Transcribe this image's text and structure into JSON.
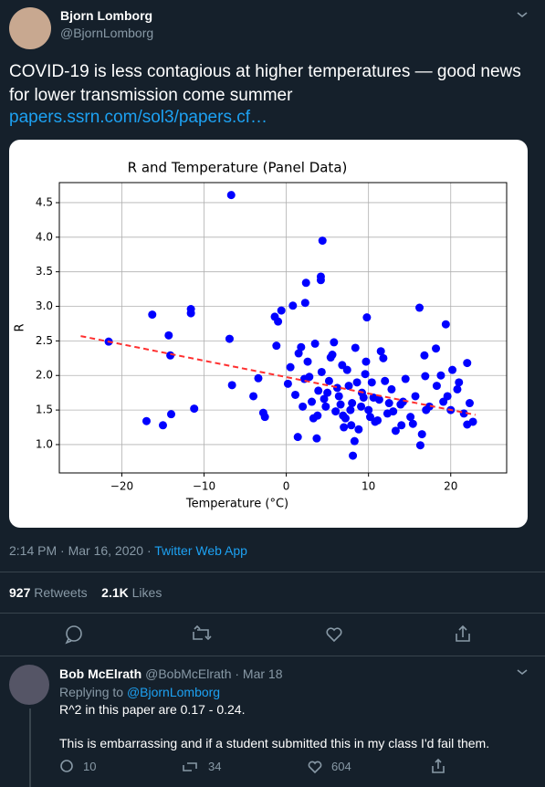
{
  "tweet": {
    "author": {
      "name": "Bjorn Lomborg",
      "handle": "@BjornLomborg"
    },
    "text": "COVID-19 is less contagious at higher temperatures — good news for lower transmission come summer",
    "link": "papers.ssrn.com/sol3/papers.cf…",
    "timestamp": "2:14 PM · Mar 16, 2020 · ",
    "source": "Twitter Web App",
    "retweets": {
      "count": "927",
      "label": "Retweets"
    },
    "likes": {
      "count": "2.1K",
      "label": "Likes"
    }
  },
  "reply": {
    "author": {
      "name": "Bob McElrath",
      "handle_date": "@BobMcElrath · Mar 18"
    },
    "replying_to": "Replying to",
    "replying_handle": "@BjornLomborg",
    "lines": [
      "R^2 in this paper are 0.17 - 0.24.",
      "This is embarrassing and if a student submitted this in my class I'd fail them."
    ],
    "replies": "10",
    "retweets": "34",
    "likes": "604"
  },
  "chart_data": {
    "type": "scatter",
    "title": "R and Temperature (Panel Data)",
    "x_label": "Temperature (°C)",
    "y_label": "R",
    "color": "#0000ff",
    "grid": true,
    "xlim": [
      -27.6,
      26.8
    ],
    "ylim": [
      0.59,
      4.79
    ],
    "xticks": [
      {
        "value": -20,
        "label": "−20"
      },
      {
        "value": -10,
        "label": "−10"
      },
      0,
      10,
      20
    ],
    "yticks": [
      {
        "value": 1,
        "label": "1.0"
      },
      1.5,
      {
        "value": 2,
        "label": "2.0"
      },
      2.5,
      {
        "value": 3,
        "label": "3.0"
      },
      3.5,
      {
        "value": 4,
        "label": "4.0"
      },
      4.5
    ],
    "x": [
      -6.7,
      -21.6,
      -16.3,
      -17,
      -15,
      -14.3,
      -14.1,
      -14,
      -11.6,
      -11.6,
      -11.2,
      -6.9,
      -6.6,
      -4,
      -3.4,
      -2.8,
      -2.6,
      -1.4,
      -1,
      -0.6,
      -1.2,
      0.8,
      2.3,
      2.4,
      4.2,
      4.2,
      4.4,
      8.1,
      9.8,
      16.2,
      19.4,
      22,
      16.3,
      22,
      22.7,
      20.2,
      16.9,
      16.8,
      18.2,
      1.4,
      3.7,
      0.2,
      0.5,
      1.1,
      1.8,
      2.2,
      2.6,
      3.1,
      3.5,
      3.9,
      4.3,
      4.8,
      5.2,
      5.6,
      6.0,
      6.4,
      6.8,
      7.2,
      7.6,
      8.0,
      8.4,
      8.8,
      9.2,
      9.6,
      10.0,
      10.4,
      10.8,
      11.3,
      11.8,
      12.3,
      12.8,
      13.3,
      13.9,
      14.5,
      15.1,
      15.7,
      16.5,
      17.4,
      18.3,
      19.1,
      20.0,
      20.8,
      21.6,
      22.3,
      1.5,
      2.8,
      3.3,
      4.6,
      5.4,
      6.2,
      6.9,
      7.4,
      7.9,
      8.6,
      9.1,
      9.7,
      10.6,
      11.1,
      12.0,
      13.0,
      14.2,
      15.4,
      17.0,
      18.8,
      21.0,
      2.0,
      3.8,
      5.0,
      5.8,
      6.6,
      7.0,
      7.8,
      8.3,
      9.4,
      10.2,
      11.5,
      12.5,
      14.0,
      19.6
    ],
    "y": [
      4.61,
      2.49,
      2.88,
      1.34,
      1.28,
      2.58,
      2.29,
      1.44,
      2.9,
      2.96,
      1.52,
      2.53,
      1.86,
      1.7,
      1.96,
      1.46,
      1.4,
      2.85,
      2.78,
      2.94,
      2.43,
      3.01,
      3.05,
      3.34,
      3.43,
      3.38,
      3.95,
      0.84,
      2.84,
      2.98,
      2.74,
      2.18,
      0.99,
      1.29,
      1.33,
      2.08,
      1.99,
      2.29,
      2.39,
      1.11,
      1.09,
      1.88,
      2.12,
      1.72,
      2.41,
      1.95,
      2.2,
      1.62,
      2.46,
      1.78,
      2.05,
      1.55,
      1.92,
      2.3,
      1.48,
      1.7,
      2.15,
      1.38,
      1.85,
      1.6,
      2.4,
      1.22,
      1.75,
      2.02,
      1.5,
      1.9,
      1.33,
      1.65,
      2.25,
      1.45,
      1.8,
      1.2,
      1.58,
      1.95,
      1.4,
      1.7,
      1.15,
      1.55,
      1.85,
      1.62,
      1.5,
      1.8,
      1.45,
      1.6,
      2.32,
      1.98,
      1.38,
      1.66,
      2.26,
      1.82,
      1.42,
      2.08,
      1.28,
      1.9,
      1.55,
      2.2,
      1.68,
      1.35,
      1.92,
      1.48,
      1.62,
      1.3,
      1.5,
      2.0,
      1.9,
      1.55,
      1.42,
      1.75,
      2.48,
      1.58,
      1.25,
      1.5,
      1.05,
      1.68,
      1.4,
      2.35,
      1.6,
      1.28,
      1.7
    ],
    "trend_line": {
      "x": [
        -25,
        23
      ],
      "y": [
        2.57,
        1.43
      ],
      "color": "#ff3030"
    }
  }
}
